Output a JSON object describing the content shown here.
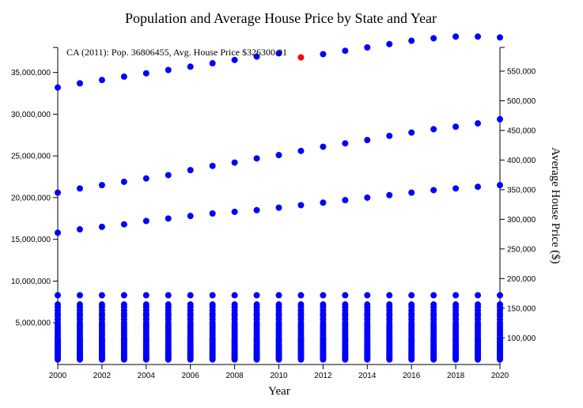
{
  "chart_data": {
    "type": "scatter",
    "title": "Population and Average House Price by State and Year",
    "xlabel": "Year",
    "ylabel": "",
    "y2label": "Average House Price ($)",
    "xlim": [
      2000,
      2020
    ],
    "ylim": [
      0,
      38000000
    ],
    "y2lim": [
      55000,
      590000
    ],
    "x_ticks": [
      "2000",
      "2002",
      "2004",
      "2006",
      "2008",
      "2010",
      "2012",
      "2014",
      "2016",
      "2018",
      "2020"
    ],
    "y_ticks": [
      "5,000,000",
      "10,000,000",
      "15,000,000",
      "20,000,000",
      "25,000,000",
      "30,000,000",
      "35,000,000"
    ],
    "y2_ticks": [
      "100,000",
      "150,000",
      "200,000",
      "250,000",
      "300,000",
      "350,000",
      "400,000",
      "450,000",
      "500,000",
      "550,000"
    ],
    "point_color": "#0000ff",
    "highlight_color": "#ff0000",
    "grid": false,
    "years": [
      2000,
      2001,
      2002,
      2003,
      2004,
      2005,
      2006,
      2007,
      2008,
      2009,
      2010,
      2011,
      2012,
      2013,
      2014,
      2015,
      2016,
      2017,
      2018,
      2019,
      2020
    ],
    "series": [
      {
        "values": [
          33200000,
          33700000,
          34100000,
          34500000,
          34900000,
          35300000,
          35700000,
          36100000,
          36500000,
          36900000,
          37300000,
          36806455,
          37200000,
          37600000,
          38000000,
          38400000,
          38800000,
          39100000,
          39300000,
          39300000,
          39200000
        ]
      },
      {
        "values": [
          20600000,
          21100000,
          21500000,
          21900000,
          22300000,
          22700000,
          23300000,
          23800000,
          24200000,
          24700000,
          25100000,
          25600000,
          26100000,
          26500000,
          26900000,
          27400000,
          27800000,
          28200000,
          28500000,
          28900000,
          29400000
        ]
      },
      {
        "values": [
          15800000,
          16200000,
          16500000,
          16800000,
          17200000,
          17500000,
          17800000,
          18100000,
          18300000,
          18500000,
          18800000,
          19100000,
          19400000,
          19700000,
          20000000,
          20300000,
          20600000,
          20900000,
          21100000,
          21300000,
          21500000
        ]
      }
    ],
    "lower_population_values": [
      8300000,
      7200000,
      6900000,
      6500000,
      6100000,
      5800000,
      5400000,
      5000000,
      4700000,
      4400000,
      4100000,
      3800000,
      3500000,
      3200000,
      3000000,
      2800000,
      2600000,
      2400000,
      2200000,
      2000000,
      1800000,
      1600000,
      1400000,
      1200000,
      1050000,
      900000,
      750000,
      600000
    ],
    "highlight": {
      "year": 2011,
      "value": 36806455
    },
    "annotation": "CA (2011): Pop. 36806455, Avg. House Price $326300.91"
  }
}
